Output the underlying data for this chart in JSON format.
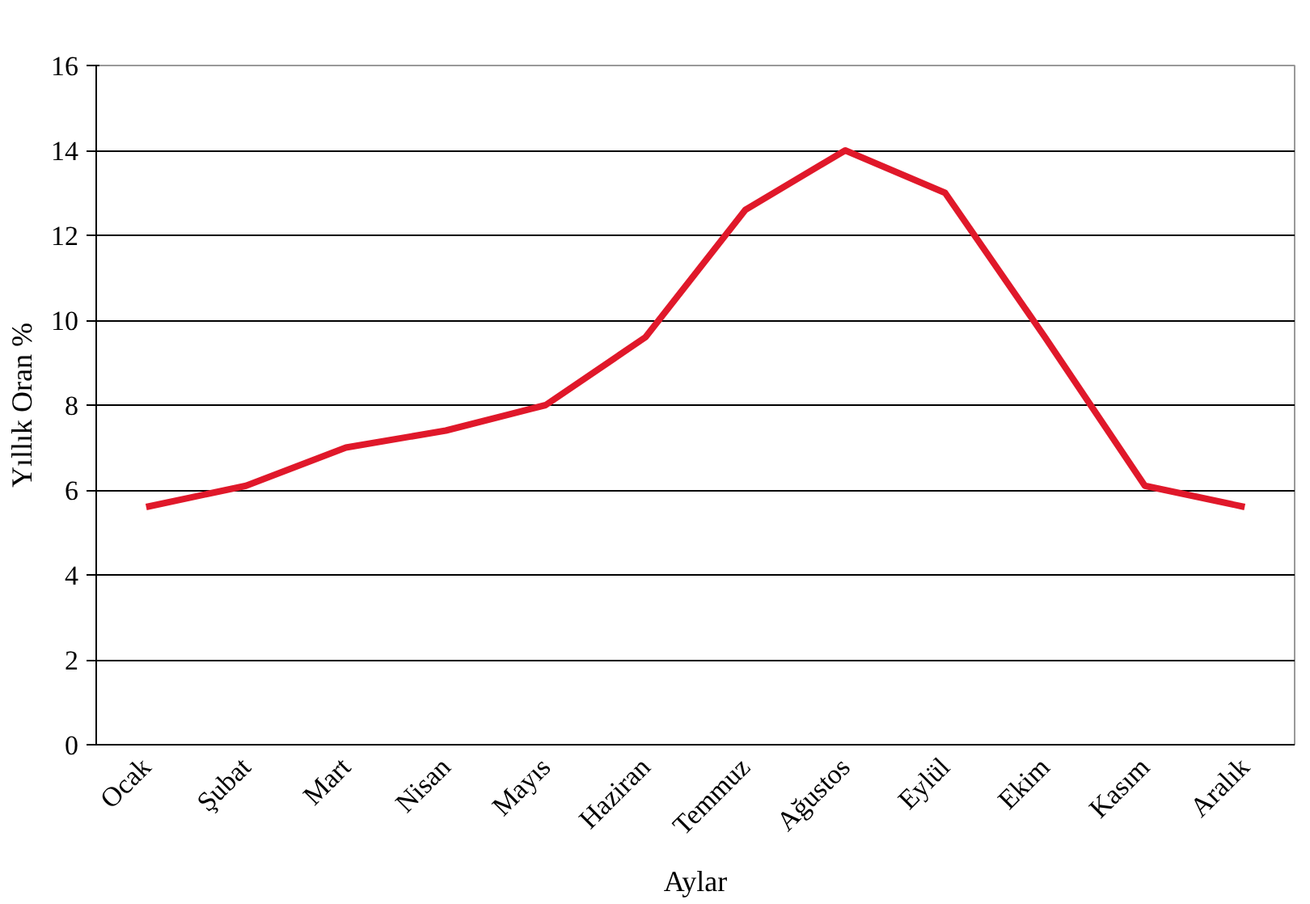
{
  "chart_data": {
    "type": "line",
    "xlabel": "Aylar",
    "ylabel": "Yıllık Oran %",
    "categories": [
      "Ocak",
      "Şubat",
      "Mart",
      "Nisan",
      "Mayıs",
      "Haziran",
      "Temmuz",
      "Ağustos",
      "Eylül",
      "Ekim",
      "Kasım",
      "Aralık"
    ],
    "series": [
      {
        "color": "#e0182a",
        "values": [
          5.6,
          6.1,
          7.0,
          7.4,
          8.0,
          9.6,
          12.6,
          14.0,
          13.0,
          9.6,
          6.1,
          5.6
        ]
      }
    ],
    "ylim": [
      0,
      16
    ],
    "yticks": [
      0,
      2,
      4,
      6,
      8,
      10,
      12,
      14,
      16
    ],
    "grid": "y",
    "marker": "none",
    "line_style": "solid"
  }
}
